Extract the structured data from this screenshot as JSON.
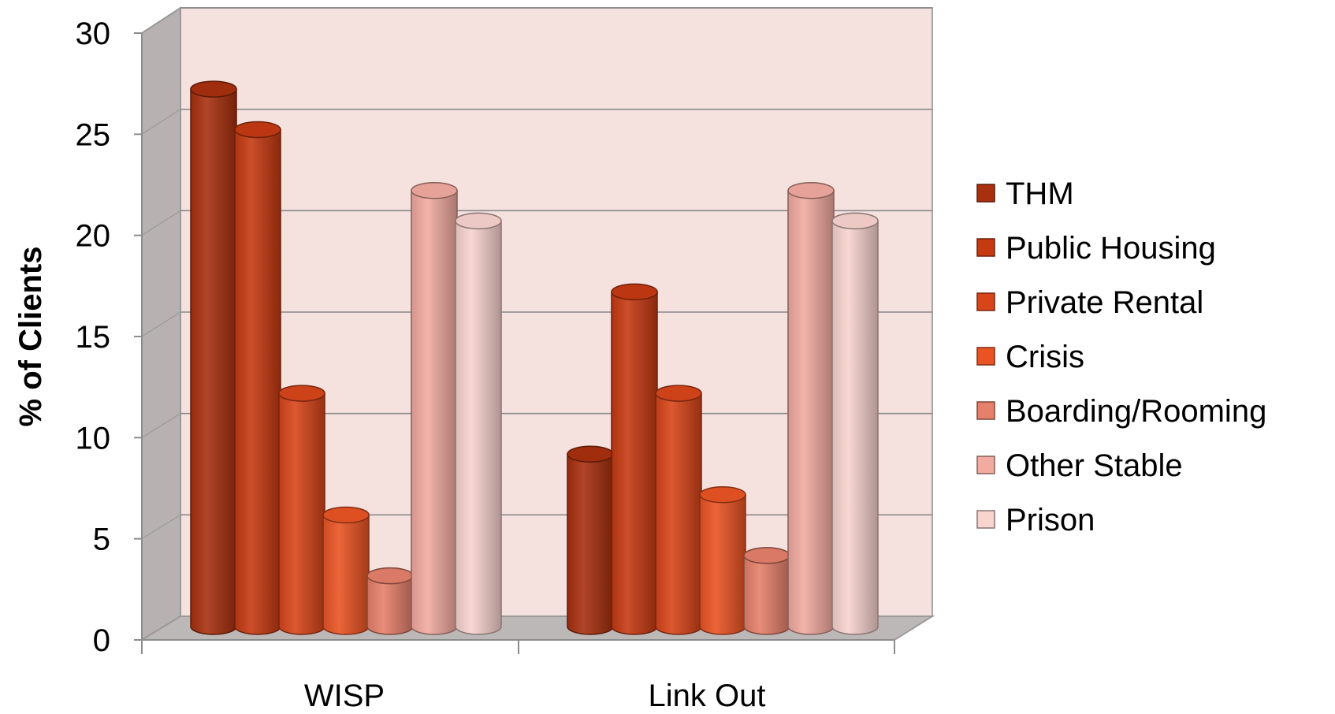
{
  "chart_data": {
    "type": "bar",
    "style": "3d-cylinder",
    "ylabel": "% of Clients",
    "xlabel": "",
    "ylim": [
      0,
      30
    ],
    "yticks": [
      0,
      5,
      10,
      15,
      20,
      25,
      30
    ],
    "grid": true,
    "legend_position": "right",
    "categories": [
      "WISP",
      "Link Out"
    ],
    "series": [
      {
        "name": "THM",
        "values": [
          26.5,
          8.5
        ],
        "color": "#a8300f"
      },
      {
        "name": "Public Housing",
        "values": [
          24.5,
          16.5
        ],
        "color": "#c63a12"
      },
      {
        "name": "Private Rental",
        "values": [
          11.5,
          11.5
        ],
        "color": "#d8451a"
      },
      {
        "name": "Crisis",
        "values": [
          5.5,
          6.5
        ],
        "color": "#ea5424"
      },
      {
        "name": "Boarding/Rooming",
        "values": [
          2.5,
          3.5
        ],
        "color": "#e5806b"
      },
      {
        "name": "Other Stable",
        "values": [
          21.5,
          21.5
        ],
        "color": "#f2aba0"
      },
      {
        "name": "Prison",
        "values": [
          20,
          20
        ],
        "color": "#f8d4cf"
      }
    ]
  }
}
